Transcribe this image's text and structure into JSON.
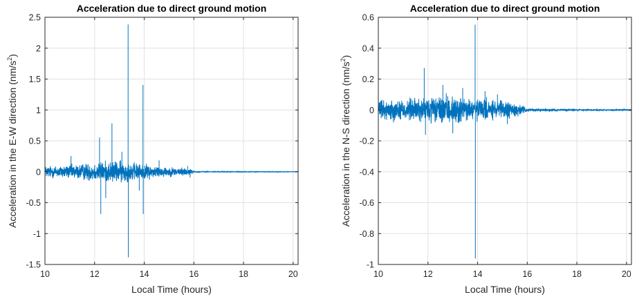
{
  "chart_data": [
    {
      "type": "line",
      "title": "Acceleration due to direct ground motion",
      "xlabel": "Local Time (hours)",
      "ylabel": "Acceleration in the E-W direction (nm/s",
      "ylabel_sup": "2",
      "ylabel_end": ")",
      "xlim": [
        10,
        20.2
      ],
      "ylim": [
        -1.5,
        2.5
      ],
      "xticks": [
        "10",
        "12",
        "14",
        "16",
        "18",
        "20"
      ],
      "yticks": [
        "-1.5",
        "-1",
        "-0.5",
        "0",
        "0.5",
        "1",
        "1.5",
        "2",
        "2.5"
      ],
      "grid": true,
      "color": "#0072BD",
      "series": [
        {
          "noise_profile": [
            [
              10.0,
              0.08
            ],
            [
              11.0,
              0.09
            ],
            [
              12.0,
              0.13
            ],
            [
              13.0,
              0.15
            ],
            [
              14.0,
              0.1
            ],
            [
              15.0,
              0.06
            ],
            [
              15.8,
              0.05
            ],
            [
              16.0,
              0.01
            ],
            [
              20.2,
              0.006
            ]
          ],
          "spikes": [
            [
              11.05,
              0.25
            ],
            [
              12.2,
              0.55
            ],
            [
              12.25,
              -0.68
            ],
            [
              12.45,
              -0.42
            ],
            [
              12.7,
              0.78
            ],
            [
              13.1,
              0.32
            ],
            [
              13.35,
              2.38
            ],
            [
              13.36,
              -1.38
            ],
            [
              13.8,
              -0.3
            ],
            [
              13.95,
              1.4
            ],
            [
              13.96,
              -0.68
            ],
            [
              14.6,
              0.18
            ],
            [
              15.75,
              0.09
            ],
            [
              15.85,
              -0.09
            ]
          ]
        }
      ]
    },
    {
      "type": "line",
      "title": "Acceleration due to direct ground motion",
      "xlabel": "Local Time (hours)",
      "ylabel": "Acceleration in the N-S direction (nm/s",
      "ylabel_sup": "2",
      "ylabel_end": ")",
      "xlim": [
        10,
        20.2
      ],
      "ylim": [
        -1,
        0.6
      ],
      "xticks": [
        "10",
        "12",
        "14",
        "16",
        "18",
        "20"
      ],
      "yticks": [
        "-1",
        "-0.8",
        "-0.6",
        "-0.4",
        "-0.2",
        "0",
        "0.2",
        "0.4",
        "0.6"
      ],
      "grid": true,
      "color": "#0072BD",
      "series": [
        {
          "noise_profile": [
            [
              10.0,
              0.05
            ],
            [
              11.0,
              0.06
            ],
            [
              12.0,
              0.07
            ],
            [
              13.0,
              0.075
            ],
            [
              14.0,
              0.06
            ],
            [
              15.0,
              0.05
            ],
            [
              15.6,
              0.035
            ],
            [
              16.0,
              0.008
            ],
            [
              20.2,
              0.005
            ]
          ],
          "spikes": [
            [
              11.85,
              0.27
            ],
            [
              11.9,
              -0.16
            ],
            [
              12.6,
              0.16
            ],
            [
              13.0,
              -0.15
            ],
            [
              13.4,
              0.14
            ],
            [
              13.9,
              0.55
            ],
            [
              13.91,
              -0.96
            ],
            [
              14.3,
              0.12
            ],
            [
              14.8,
              0.1
            ],
            [
              15.2,
              -0.09
            ]
          ]
        }
      ]
    }
  ]
}
